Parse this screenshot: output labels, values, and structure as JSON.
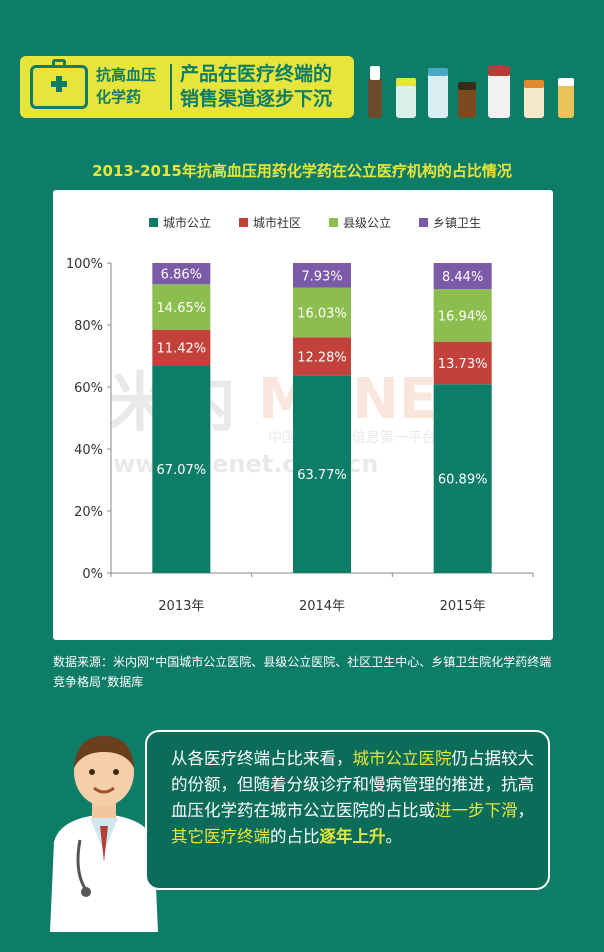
{
  "header": {
    "category_line1": "抗高血压",
    "category_line2": "化学药",
    "title_line1": "产品在医疗终端的",
    "title_line2": "销售渠道逐步下沉"
  },
  "chart_title": "2013-2015年抗高血压用药化学药在公立医疗机构的占比情况",
  "chart_data": {
    "type": "bar",
    "stacked": true,
    "categories": [
      "2013年",
      "2014年",
      "2015年"
    ],
    "series": [
      {
        "name": "城市公立",
        "values": [
          67.07,
          63.77,
          60.89
        ],
        "labels": [
          "67.07%",
          "63.77%",
          "60.89%"
        ],
        "color": "#0e7d67"
      },
      {
        "name": "城市社区",
        "values": [
          11.42,
          12.28,
          13.73
        ],
        "labels": [
          "11.42%",
          "12.28%",
          "13.73%"
        ],
        "color": "#c2413b"
      },
      {
        "name": "县级公立",
        "values": [
          14.65,
          16.03,
          16.94
        ],
        "labels": [
          "14.65%",
          "16.03%",
          "16.94%"
        ],
        "color": "#8bbd4f"
      },
      {
        "name": "乡镇卫生",
        "values": [
          6.86,
          7.93,
          8.44
        ],
        "labels": [
          "6.86%",
          "7.93%",
          "8.44%"
        ],
        "color": "#7b5aa8"
      }
    ],
    "yticks": [
      "0%",
      "20%",
      "40%",
      "60%",
      "80%",
      "100%"
    ],
    "ylim": [
      0,
      100
    ],
    "legend": "top",
    "grid": false
  },
  "watermark": {
    "logo": "米内",
    "brand": "MENET",
    "subtitle": "中国医药健康信息第一平台",
    "url": "www.menet.com.cn"
  },
  "source": "数据来源：米内网“中国城市公立医院、县级公立医院、社区卫生中心、乡镇卫生院化学药终端竞争格局”数据库",
  "bubble": {
    "p1": "从各医疗终端占比来看，",
    "p2": "城市公立医院",
    "p3": "仍占据较大的份额，但随着分级诊疗和慢病管理的推进，抗高血压化学药在城市公立医院的占比或",
    "p4": "进一步下滑",
    "p5": "，",
    "p6": "其它医疗终端",
    "p7": "的占比",
    "p8": "逐年上升",
    "p9": "。"
  }
}
